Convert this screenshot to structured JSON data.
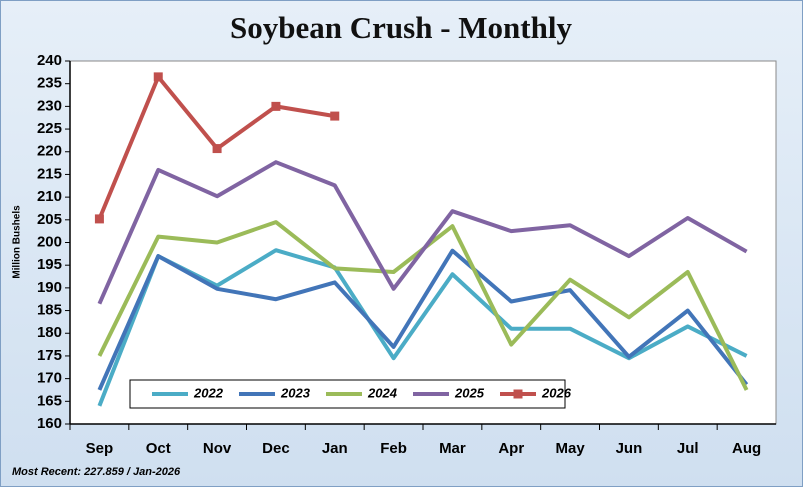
{
  "chart_data": {
    "type": "line",
    "title": "Soybean Crush - Monthly",
    "ylabel": "Million Bushels",
    "annotation": "Most Recent: 227.859 / Jan-2026",
    "categories": [
      "Sep",
      "Oct",
      "Nov",
      "Dec",
      "Jan",
      "Feb",
      "Mar",
      "Apr",
      "May",
      "Jun",
      "Jul",
      "Aug"
    ],
    "ylim": [
      160,
      240
    ],
    "yticks": [
      160,
      165,
      170,
      175,
      180,
      185,
      190,
      195,
      200,
      205,
      210,
      215,
      220,
      225,
      230,
      235,
      240
    ],
    "grid": false,
    "legend": "bottom-left",
    "series": [
      {
        "name": "2022",
        "color": "#4bacc6",
        "values": [
          164,
          197,
          190.5,
          198.3,
          194.5,
          174.5,
          193,
          181,
          181,
          174.5,
          181.5,
          175
        ]
      },
      {
        "name": "2023",
        "color": "#4275b8",
        "values": [
          167.5,
          197,
          189.8,
          187.5,
          191.2,
          177,
          198.2,
          187,
          189.5,
          174.8,
          185,
          168.7
        ]
      },
      {
        "name": "2024",
        "color": "#9bbb59",
        "values": [
          175,
          201.3,
          200,
          204.5,
          194.3,
          193.5,
          203.6,
          177.5,
          191.8,
          183.5,
          193.5,
          167.5
        ]
      },
      {
        "name": "2025",
        "color": "#8064a2",
        "values": [
          186.5,
          216,
          210.2,
          217.7,
          212.6,
          189.8,
          206.9,
          202.5,
          203.8,
          197,
          205.4,
          198
        ]
      },
      {
        "name": "2026",
        "color": "#c0504d",
        "marker": "square",
        "values": [
          205.2,
          236.5,
          220.7,
          230,
          227.859,
          null,
          null,
          null,
          null,
          null,
          null,
          null
        ]
      }
    ]
  }
}
